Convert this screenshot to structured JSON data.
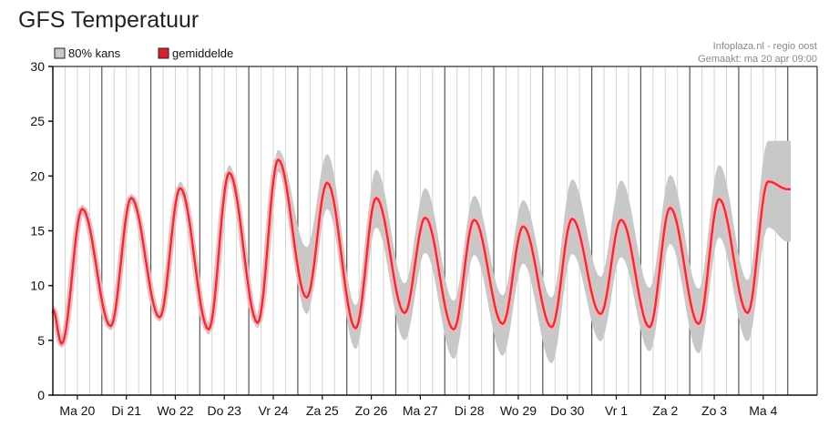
{
  "page": {
    "title": "GFS Temperatuur"
  },
  "chart_data": {
    "type": "line",
    "title": "GFS Temperatuur",
    "source_line1": "Infoplaza.nl - regio oost",
    "source_line2": "Gemaakt: ma 20 apr 09:00",
    "ylim": [
      0,
      30
    ],
    "y_ticks": [
      0,
      5,
      10,
      15,
      20,
      25,
      30
    ],
    "xlim": [
      0,
      15.6
    ],
    "grid": true,
    "legend_position": "top-left",
    "colors": {
      "band": "#c8c8c8",
      "mean": "#e0303a",
      "mean_glow": "#f5b5b8",
      "legend_band": "#c8c8c8",
      "legend_mean": "#d9202e"
    },
    "legend": [
      {
        "key": "band",
        "label": "80% kans"
      },
      {
        "key": "mean",
        "label": "gemiddelde"
      }
    ],
    "days": [
      "Ma 20",
      "Di 21",
      "Wo 22",
      "Do 23",
      "Vr 24",
      "Za 25",
      "Zo 26",
      "Ma 27",
      "Di 28",
      "Wo 29",
      "Do 30",
      "Vr 1",
      "Za 2",
      "Zo 3",
      "Ma 4"
    ],
    "series": [
      {
        "name": "gemiddelde",
        "key": "mean",
        "x": [
          0,
          0.18,
          0.6,
          1.18,
          1.6,
          2.18,
          2.6,
          3.18,
          3.6,
          4.18,
          4.6,
          5.18,
          5.6,
          6.18,
          6.6,
          7.18,
          7.6,
          8.18,
          8.6,
          9.18,
          9.6,
          10.18,
          10.6,
          11.18,
          11.6,
          12.18,
          12.6,
          13.18,
          13.6,
          14.18,
          14.6,
          15.0,
          15.06
        ],
        "values": [
          7.8,
          4.7,
          17.0,
          6.3,
          18.0,
          7.1,
          18.9,
          6.0,
          20.3,
          6.6,
          21.5,
          8.9,
          19.4,
          6.1,
          18.0,
          7.5,
          16.2,
          6.0,
          16.0,
          6.5,
          15.4,
          6.2,
          16.1,
          7.4,
          16.0,
          6.2,
          17.1,
          6.5,
          17.9,
          7.5,
          19.5,
          18.8,
          18.8
        ]
      },
      {
        "name": "80% kans",
        "key": "band",
        "x": [
          0,
          0.18,
          0.6,
          1.18,
          1.6,
          2.18,
          2.6,
          3.18,
          3.6,
          4.18,
          4.6,
          5.18,
          5.6,
          6.18,
          6.6,
          7.18,
          7.6,
          8.18,
          8.6,
          9.18,
          9.6,
          10.18,
          10.6,
          11.18,
          11.6,
          12.18,
          12.6,
          13.18,
          13.6,
          14.18,
          14.6,
          15.0,
          15.06
        ],
        "low": [
          7.3,
          4.3,
          16.6,
          5.9,
          17.6,
          6.7,
          18.3,
          5.5,
          19.6,
          6.1,
          20.4,
          7.4,
          17.0,
          4.2,
          15.3,
          5.0,
          13.0,
          3.3,
          12.8,
          3.6,
          12.0,
          2.9,
          12.9,
          4.9,
          12.6,
          4.0,
          13.8,
          3.8,
          14.4,
          4.9,
          15.3,
          14.0,
          14.0
        ],
        "high": [
          8.3,
          5.1,
          17.4,
          6.7,
          18.4,
          7.5,
          19.5,
          6.5,
          21.0,
          7.2,
          22.4,
          13.5,
          22.0,
          8.2,
          20.6,
          10.2,
          18.9,
          8.6,
          18.2,
          9.1,
          17.8,
          8.9,
          19.7,
          10.8,
          19.6,
          9.8,
          20.1,
          9.7,
          21.0,
          10.5,
          23.2,
          23.2,
          23.2
        ]
      }
    ]
  }
}
